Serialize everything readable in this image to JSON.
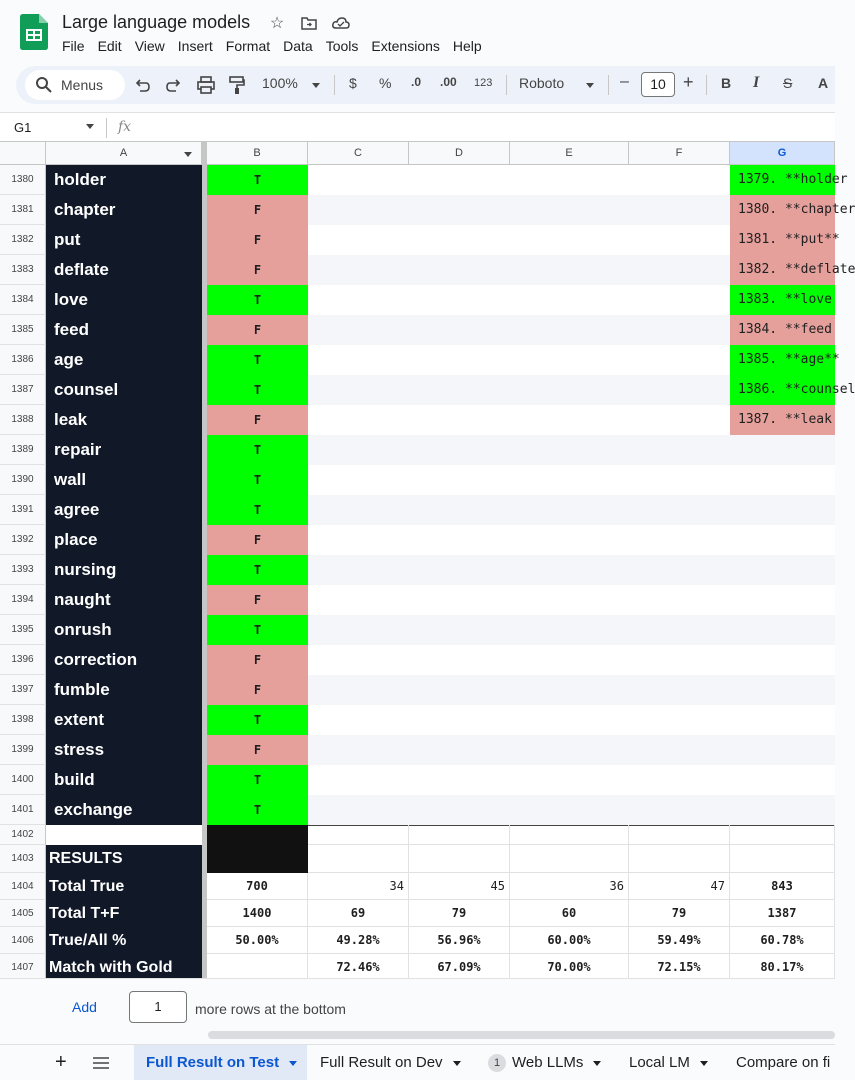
{
  "app": {
    "title": "Large language models",
    "menu": [
      "File",
      "Edit",
      "View",
      "Insert",
      "Format",
      "Data",
      "Tools",
      "Extensions",
      "Help"
    ]
  },
  "toolbar": {
    "search_label": "Menus",
    "zoom": "100%",
    "currency": "$",
    "percent": "%",
    "dec_decrease": ".0",
    "dec_increase": ".00",
    "number_format": "123",
    "font": "Roboto",
    "minus": "–",
    "font_size": "10",
    "plus": "+",
    "bold": "B",
    "italic": "I",
    "strike": "S",
    "text_color": "A"
  },
  "formula_bar": {
    "name_box": "G1",
    "fx": "fx"
  },
  "columns": [
    "A",
    "B",
    "C",
    "D",
    "E",
    "F",
    "G"
  ],
  "selected_column": "G",
  "rows": [
    {
      "num": "1380",
      "word": "holder",
      "b": "T",
      "g": "1379. **holder"
    },
    {
      "num": "1381",
      "word": "chapter",
      "b": "F",
      "g": "1380. **chapter"
    },
    {
      "num": "1382",
      "word": "put",
      "b": "F",
      "g": "1381. **put**"
    },
    {
      "num": "1383",
      "word": "deflate",
      "b": "F",
      "g": "1382. **deflate"
    },
    {
      "num": "1384",
      "word": "love",
      "b": "T",
      "g": "1383. **love"
    },
    {
      "num": "1385",
      "word": "feed",
      "b": "F",
      "g": "1384. **feed"
    },
    {
      "num": "1386",
      "word": "age",
      "b": "T",
      "g": "1385. **age**"
    },
    {
      "num": "1387",
      "word": "counsel",
      "b": "T",
      "g": "1386. **counsel"
    },
    {
      "num": "1388",
      "word": "leak",
      "b": "F",
      "g": "1387. **leak"
    },
    {
      "num": "1389",
      "word": "repair",
      "b": "T",
      "g": ""
    },
    {
      "num": "1390",
      "word": "wall",
      "b": "T",
      "g": ""
    },
    {
      "num": "1391",
      "word": "agree",
      "b": "T",
      "g": ""
    },
    {
      "num": "1392",
      "word": "place",
      "b": "F",
      "g": ""
    },
    {
      "num": "1393",
      "word": "nursing",
      "b": "T",
      "g": ""
    },
    {
      "num": "1394",
      "word": "naught",
      "b": "F",
      "g": ""
    },
    {
      "num": "1395",
      "word": "onrush",
      "b": "T",
      "g": ""
    },
    {
      "num": "1396",
      "word": "correction",
      "b": "F",
      "g": ""
    },
    {
      "num": "1397",
      "word": "fumble",
      "b": "F",
      "g": ""
    },
    {
      "num": "1398",
      "word": "extent",
      "b": "T",
      "g": ""
    },
    {
      "num": "1399",
      "word": "stress",
      "b": "F",
      "g": ""
    },
    {
      "num": "1400",
      "word": "build",
      "b": "T",
      "g": ""
    },
    {
      "num": "1401",
      "word": "exchange",
      "b": "T",
      "g": ""
    }
  ],
  "blank_row_num": "1402",
  "results": {
    "header_num": "1403",
    "header": "RESULTS",
    "rows": [
      {
        "num": "1404",
        "label": "Total True",
        "vals": [
          "700",
          "34",
          "45",
          "36",
          "47",
          "843"
        ]
      },
      {
        "num": "1405",
        "label": "Total T+F",
        "vals": [
          "1400",
          "69",
          "79",
          "60",
          "79",
          "1387"
        ]
      },
      {
        "num": "1406",
        "label": "True/All %",
        "vals": [
          "50.00%",
          "49.28%",
          "56.96%",
          "60.00%",
          "59.49%",
          "60.78%"
        ]
      },
      {
        "num": "1407",
        "label": "Match with Gold",
        "vals": [
          "",
          "72.46%",
          "67.09%",
          "70.00%",
          "72.15%",
          "80.17%"
        ]
      }
    ]
  },
  "add_rows": {
    "button": "Add",
    "value": "1",
    "suffix": "more rows at the bottom"
  },
  "tabs": [
    {
      "label": "Full Result on Test",
      "active": true,
      "badge": ""
    },
    {
      "label": "Full Result on Dev",
      "active": false,
      "badge": ""
    },
    {
      "label": "Web LLMs",
      "active": false,
      "badge": "1"
    },
    {
      "label": "Local LM",
      "active": false,
      "badge": ""
    },
    {
      "label": "Compare on fi",
      "active": false,
      "badge": ""
    }
  ],
  "colors": {
    "true_green": "#00ff00",
    "false_red": "#e6a09c",
    "label_bg": "#111827",
    "accent": "#0b57d0"
  }
}
